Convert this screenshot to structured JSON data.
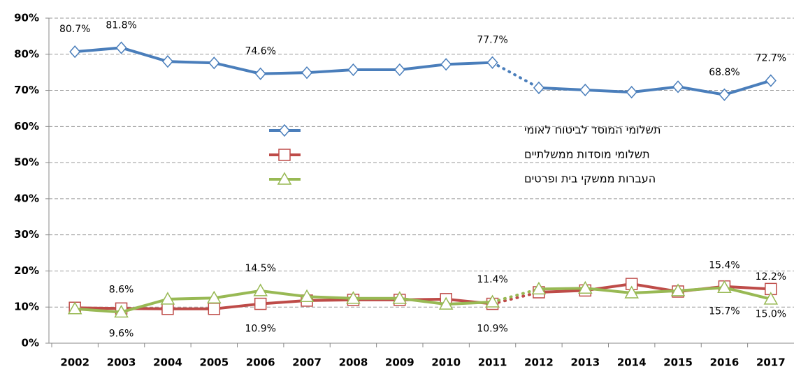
{
  "chart_data": {
    "type": "line",
    "categories": [
      "2002",
      "2003",
      "2004",
      "2005",
      "2006",
      "2007",
      "2008",
      "2009",
      "2010",
      "2011",
      "2012",
      "2013",
      "2014",
      "2015",
      "2016",
      "2017"
    ],
    "series": [
      {
        "name": "תשלומי המוסד לביטוח לאומי",
        "color": "#4a7ebb",
        "marker": "diamond",
        "values": [
          80.7,
          81.8,
          78.0,
          77.6,
          74.6,
          74.9,
          75.7,
          75.7,
          77.2,
          77.7,
          70.7,
          70.1,
          69.5,
          71.0,
          68.8,
          72.7
        ],
        "value_labels": [
          "80.7%",
          "81.8%",
          null,
          null,
          "74.6%",
          null,
          null,
          null,
          null,
          "77.7%",
          null,
          null,
          null,
          null,
          "68.8%",
          "72.7%"
        ]
      },
      {
        "name": "תשלומי מוסדות ממשלתיים",
        "color": "#be4b48",
        "marker": "square",
        "values": [
          9.8,
          9.6,
          9.5,
          9.5,
          10.9,
          11.8,
          12.0,
          12.0,
          12.2,
          10.9,
          14.1,
          14.6,
          16.4,
          14.3,
          15.7,
          15.0
        ],
        "value_labels": [
          null,
          "9.6%",
          null,
          null,
          "10.9%",
          null,
          null,
          null,
          null,
          "10.9%",
          null,
          null,
          null,
          null,
          "15.7%",
          "15.0%"
        ]
      },
      {
        "name": "העברות ממשקי בית ופרטים",
        "color": "#98b954",
        "marker": "triangle",
        "values": [
          9.5,
          8.6,
          12.2,
          12.5,
          14.5,
          12.9,
          12.4,
          12.4,
          10.8,
          11.4,
          15.0,
          15.2,
          13.9,
          14.5,
          15.4,
          12.2
        ],
        "value_labels": [
          null,
          "8.6%",
          null,
          null,
          "14.5%",
          null,
          null,
          null,
          null,
          "11.4%",
          null,
          null,
          null,
          null,
          "15.4%",
          "12.2%"
        ]
      }
    ],
    "dotted_segment": [
      9,
      10
    ],
    "ylim": [
      0,
      90
    ],
    "yticks": [
      {
        "value": 0,
        "label": "0%"
      },
      {
        "value": 10,
        "label": "10%"
      },
      {
        "value": 20,
        "label": "20%"
      },
      {
        "value": 30,
        "label": "30%"
      },
      {
        "value": 40,
        "label": "40%"
      },
      {
        "value": 50,
        "label": "50%"
      },
      {
        "value": 60,
        "label": "60%"
      },
      {
        "value": 70,
        "label": "70%"
      },
      {
        "value": 80,
        "label": "80%"
      },
      {
        "value": 90,
        "label": "90%"
      }
    ],
    "grid": true
  }
}
